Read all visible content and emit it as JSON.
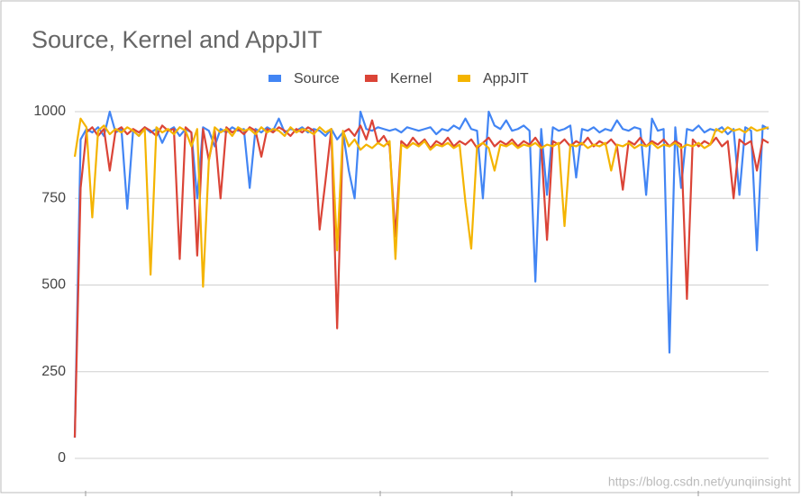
{
  "chart_data": {
    "type": "line",
    "title": "Source, Kernel and AppJIT",
    "annotation": "https://blog.csdn.net/yunqiinsight",
    "legend": "top",
    "grid": true,
    "ylim": [
      0,
      1000
    ],
    "yticks": [
      0,
      250,
      500,
      750,
      1000
    ],
    "categories": [
      null,
      null,
      null,
      null,
      null,
      null,
      null,
      null,
      null,
      null,
      null,
      null,
      null,
      null,
      null,
      null,
      null,
      null,
      null,
      null,
      null,
      null,
      null,
      null,
      null,
      null,
      null,
      null,
      null,
      null,
      null,
      null,
      null,
      null,
      null,
      null,
      null,
      null,
      null,
      null,
      null,
      null,
      null,
      null,
      null,
      null,
      null,
      null,
      null,
      null,
      null,
      null,
      null,
      null,
      null,
      null,
      null,
      null,
      null,
      null,
      null,
      null,
      null,
      null,
      null,
      null,
      null,
      null,
      null,
      null,
      null,
      null,
      null,
      null,
      null,
      null,
      null,
      null,
      null,
      null,
      null,
      null,
      null,
      null,
      null,
      null,
      null,
      null,
      null,
      null,
      null,
      null,
      null,
      null,
      null,
      null,
      null,
      null,
      null,
      null,
      null,
      null,
      null,
      null,
      null,
      null,
      null,
      null,
      null,
      null,
      null,
      null,
      null,
      null,
      null,
      null,
      null,
      null,
      null,
      null
    ],
    "series": [
      {
        "name": "Source",
        "color": "#4285f4",
        "values": [
          60,
          920,
          950,
          940,
          955,
          930,
          1000,
          940,
          950,
          720,
          945,
          930,
          955,
          940,
          950,
          910,
          945,
          955,
          930,
          950,
          940,
          750,
          955,
          945,
          900,
          950,
          940,
          955,
          945,
          950,
          780,
          950,
          940,
          955,
          945,
          980,
          940,
          950,
          945,
          955,
          940,
          950,
          945,
          930,
          950,
          920,
          940,
          830,
          750,
          1000,
          950,
          945,
          955,
          950,
          945,
          950,
          940,
          955,
          950,
          945,
          950,
          955,
          935,
          950,
          945,
          960,
          950,
          980,
          950,
          945,
          750,
          1000,
          960,
          950,
          975,
          945,
          950,
          960,
          945,
          510,
          950,
          760,
          955,
          945,
          950,
          960,
          810,
          950,
          945,
          955,
          940,
          950,
          945,
          975,
          950,
          945,
          955,
          950,
          760,
          980,
          945,
          950,
          305,
          955,
          780,
          950,
          945,
          960,
          940,
          950,
          945,
          955,
          935,
          950,
          760,
          955,
          945,
          600,
          960,
          950
        ]
      },
      {
        "name": "Kernel",
        "color": "#db4437",
        "values": [
          60,
          780,
          940,
          955,
          930,
          950,
          830,
          945,
          955,
          935,
          950,
          940,
          955,
          945,
          930,
          960,
          945,
          950,
          575,
          955,
          940,
          585,
          950,
          860,
          945,
          750,
          955,
          940,
          950,
          935,
          955,
          945,
          870,
          950,
          940,
          955,
          945,
          930,
          950,
          940,
          955,
          945,
          660,
          800,
          950,
          375,
          940,
          950,
          930,
          960,
          920,
          975,
          910,
          930,
          900,
          640,
          915,
          900,
          925,
          905,
          920,
          895,
          915,
          905,
          925,
          900,
          915,
          905,
          920,
          895,
          910,
          925,
          900,
          915,
          905,
          920,
          900,
          915,
          905,
          925,
          900,
          630,
          915,
          905,
          920,
          900,
          915,
          905,
          925,
          900,
          915,
          905,
          920,
          900,
          775,
          915,
          905,
          925,
          900,
          915,
          905,
          920,
          900,
          915,
          905,
          460,
          920,
          900,
          915,
          905,
          925,
          900,
          915,
          750,
          920,
          905,
          915,
          830,
          920,
          910
        ]
      },
      {
        "name": "AppJIT",
        "color": "#f4b400",
        "values": [
          870,
          980,
          955,
          695,
          945,
          960,
          935,
          950,
          940,
          955,
          945,
          930,
          950,
          530,
          955,
          940,
          950,
          935,
          955,
          945,
          900,
          950,
          495,
          860,
          955,
          940,
          950,
          930,
          955,
          945,
          950,
          935,
          955,
          940,
          950,
          945,
          930,
          955,
          940,
          950,
          945,
          935,
          955,
          940,
          950,
          600,
          945,
          900,
          920,
          890,
          905,
          895,
          910,
          900,
          915,
          575,
          905,
          895,
          910,
          900,
          915,
          890,
          905,
          900,
          910,
          895,
          905,
          740,
          605,
          900,
          910,
          895,
          830,
          905,
          900,
          910,
          895,
          905,
          900,
          910,
          895,
          905,
          900,
          910,
          670,
          905,
          900,
          910,
          895,
          905,
          900,
          910,
          830,
          905,
          900,
          910,
          895,
          905,
          900,
          910,
          895,
          905,
          900,
          910,
          895,
          905,
          900,
          910,
          895,
          905,
          950,
          940,
          955,
          945,
          950,
          940,
          955,
          945,
          950,
          955
        ]
      }
    ]
  }
}
